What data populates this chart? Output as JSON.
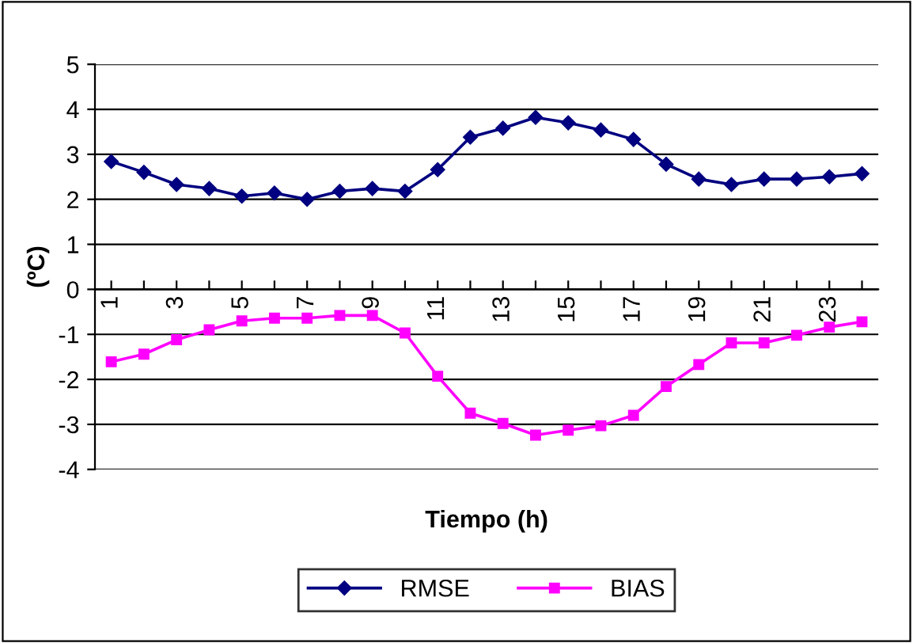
{
  "chart_data": {
    "type": "line",
    "ylabel": "(ºC)",
    "xlabel": "Tiempo (h)",
    "categories": [
      "1",
      null,
      "3",
      null,
      "5",
      null,
      "7",
      null,
      "9",
      null,
      "11",
      null,
      "13",
      null,
      "15",
      null,
      "17",
      null,
      "19",
      null,
      "21",
      null,
      "23",
      null
    ],
    "series": [
      {
        "name": "RMSE",
        "color": "#000080",
        "marker": "diamond",
        "values": [
          2.84,
          2.6,
          2.33,
          2.24,
          2.07,
          2.14,
          2.0,
          2.18,
          2.24,
          2.18,
          2.66,
          3.38,
          3.58,
          3.82,
          3.7,
          3.54,
          3.33,
          2.78,
          2.45,
          2.33,
          2.45,
          2.45,
          2.5,
          2.57
        ]
      },
      {
        "name": "BIAS",
        "color": "#ff00ff",
        "marker": "square",
        "values": [
          -1.61,
          -1.44,
          -1.12,
          -0.9,
          -0.7,
          -0.64,
          -0.64,
          -0.58,
          -0.58,
          -0.97,
          -1.93,
          -2.75,
          -2.98,
          -3.24,
          -3.13,
          -3.03,
          -2.8,
          -2.16,
          -1.67,
          -1.19,
          -1.19,
          -1.02,
          -0.84,
          -0.72
        ]
      }
    ],
    "ylim": [
      -4,
      5
    ],
    "yticks": [
      -4,
      -3,
      -2,
      -1,
      0,
      1,
      2,
      3,
      4,
      5
    ],
    "grid": "y",
    "legend": "bottom",
    "line_style": "solid"
  }
}
